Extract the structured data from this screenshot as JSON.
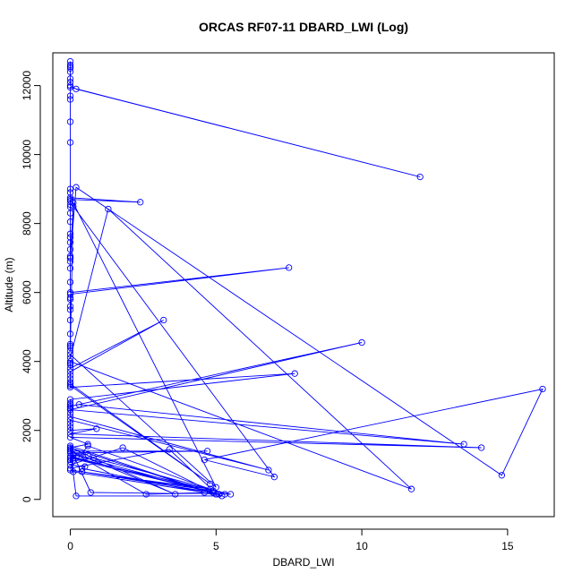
{
  "chart_data": {
    "type": "scatter",
    "title": "ORCAS RF07-11 DBARD_LWI (Log)",
    "xlabel": "DBARD_LWI",
    "ylabel": "Altitude (m)",
    "xlim": [
      -0.6,
      16.6
    ],
    "ylim": [
      -500,
      12950
    ],
    "x_ticks": [
      0,
      5,
      10,
      15
    ],
    "y_ticks": [
      0,
      2000,
      4000,
      6000,
      8000,
      10000,
      12000
    ],
    "grid": false,
    "legend": "none",
    "mode": "lines+markers",
    "colors": {
      "series": "#0000ff",
      "axis": "#000000",
      "background": "#ffffff"
    },
    "series": [
      {
        "x": [
          0.0,
          0.0,
          0.0,
          0.0,
          0.0,
          0.0,
          0.0,
          0.0,
          0.2,
          12.0,
          0.0,
          0.0,
          0.0,
          0.0,
          0.0,
          0.0,
          0.0,
          0.0,
          2.4,
          0.0,
          0.0,
          0.0,
          0.0,
          0.0,
          0.0,
          0.0,
          0.0,
          0.0,
          0.0,
          0.0,
          0.0,
          0.2,
          14.8,
          16.2,
          4.6,
          7.0,
          0.1,
          0.0,
          0.0,
          0.0,
          0.0,
          0.0,
          7.5,
          0.0,
          0.0,
          0.0,
          0.0,
          0.0,
          0.0,
          0.0,
          0.0,
          0.0,
          0.0,
          0.0,
          0.1,
          5.0,
          0.0,
          0.0,
          1.3,
          11.7,
          0.0,
          0.0,
          0.0,
          0.0,
          3.2,
          0.0,
          0.0,
          0.0,
          0.0,
          0.0,
          4.8,
          0.0,
          0.0,
          7.7,
          0.0,
          0.0,
          0.0,
          0.0,
          0.0,
          0.0,
          10.0,
          0.0,
          0.3,
          13.5,
          0.0,
          0.0,
          0.0,
          6.8,
          0.0,
          0.0,
          0.0,
          0.0,
          0.9,
          0.0,
          14.1,
          0.0,
          0.6,
          0.0,
          0.0,
          0.0,
          4.7,
          0.0,
          0.6,
          0.0,
          5.1,
          0.0,
          0.0,
          0.0,
          0.8,
          4.8,
          0.4,
          4.9,
          1.8,
          0.0,
          0.5,
          0.4,
          4.6,
          5.3,
          0.6,
          0.0,
          3.4,
          4.9,
          0.0,
          0.1,
          5.0,
          0.0,
          0.1,
          5.5,
          0.7,
          0.1,
          4.9,
          2.6,
          0.0,
          3.6,
          0.0,
          5.2,
          0.2,
          0.0
        ],
        "y": [
          12700,
          12600,
          12550,
          12500,
          12400,
          12200,
          12100,
          12000,
          11900,
          9350,
          11950,
          11700,
          11600,
          10950,
          10350,
          9000,
          8900,
          8750,
          8620,
          8700,
          8650,
          8550,
          8480,
          8300,
          8050,
          7700,
          7600,
          7450,
          7250,
          7050,
          7000,
          9050,
          700,
          3200,
          1150,
          650,
          8500,
          7000,
          6900,
          6700,
          6300,
          6000,
          6720,
          5950,
          5850,
          5800,
          5600,
          5500,
          5200,
          4800,
          4500,
          4450,
          4400,
          4300,
          8600,
          350,
          4200,
          4100,
          8420,
          300,
          4000,
          3950,
          3900,
          3800,
          5200,
          3700,
          3600,
          3500,
          3400,
          3300,
          450,
          3350,
          3250,
          3650,
          2900,
          2800,
          2750,
          2700,
          2650,
          2600,
          4550,
          2700,
          2750,
          1600,
          2600,
          2500,
          2400,
          850,
          2300,
          2200,
          2100,
          2000,
          2050,
          1900,
          1500,
          1800,
          1600,
          1500,
          1450,
          1400,
          1400,
          1350,
          1300,
          1250,
          150,
          1200,
          1150,
          1100,
          1200,
          300,
          800,
          200,
          1500,
          1000,
          950,
          900,
          200,
          150,
          1550,
          900,
          1450,
          250,
          850,
          800,
          150,
          1550,
          1200,
          150,
          200,
          1300,
          200,
          150,
          1400,
          150,
          1500,
          100,
          100,
          1450
        ]
      }
    ]
  }
}
